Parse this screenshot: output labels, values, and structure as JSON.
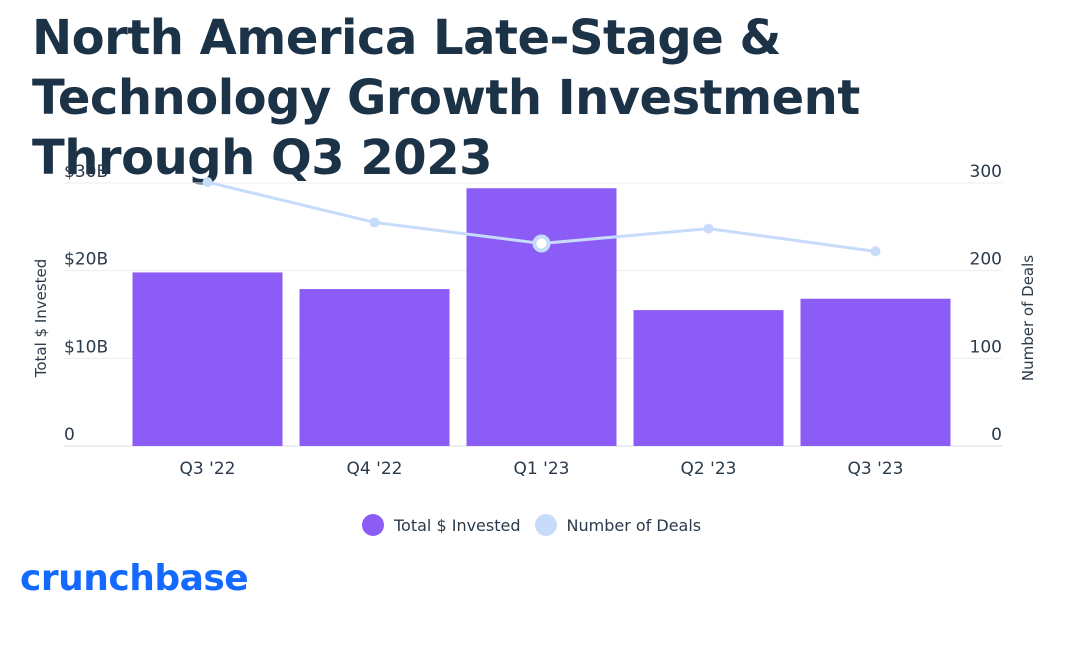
{
  "title": "North America Late-Stage & Technology Growth Investment Through Q3 2023",
  "logo_text": "crunchbase",
  "colors": {
    "bar": "#8b5cf6",
    "line": "#c7dbfa",
    "title": "#1c3246",
    "logo": "#146aff"
  },
  "legend": [
    {
      "label": "Total $ Invested",
      "color": "#8b5cf6"
    },
    {
      "label": "Number of Deals",
      "color": "#c7dbfa"
    }
  ],
  "chart_data": {
    "type": "bar",
    "categories": [
      "Q3 '22",
      "Q4 '22",
      "Q1 '23",
      "Q2 '23",
      "Q3 '23"
    ],
    "series": [
      {
        "name": "Total $ Invested",
        "type": "bar",
        "axis": "left",
        "values": [
          19.8,
          17.9,
          29.4,
          15.5,
          16.8
        ]
      },
      {
        "name": "Number of Deals",
        "type": "line",
        "axis": "right",
        "values": [
          301,
          255,
          231,
          248,
          222
        ]
      }
    ],
    "ylabel": "Total $ Invested",
    "y2label": "Number of Deals",
    "ylim": [
      0,
      30
    ],
    "y2lim": [
      0,
      300
    ],
    "yticks": [
      "0",
      "$10B",
      "$20B",
      "$30B"
    ],
    "y2ticks": [
      "0",
      "100",
      "200",
      "300"
    ],
    "highlighted_point_index": 2,
    "grid": true,
    "legend_position": "bottom"
  }
}
